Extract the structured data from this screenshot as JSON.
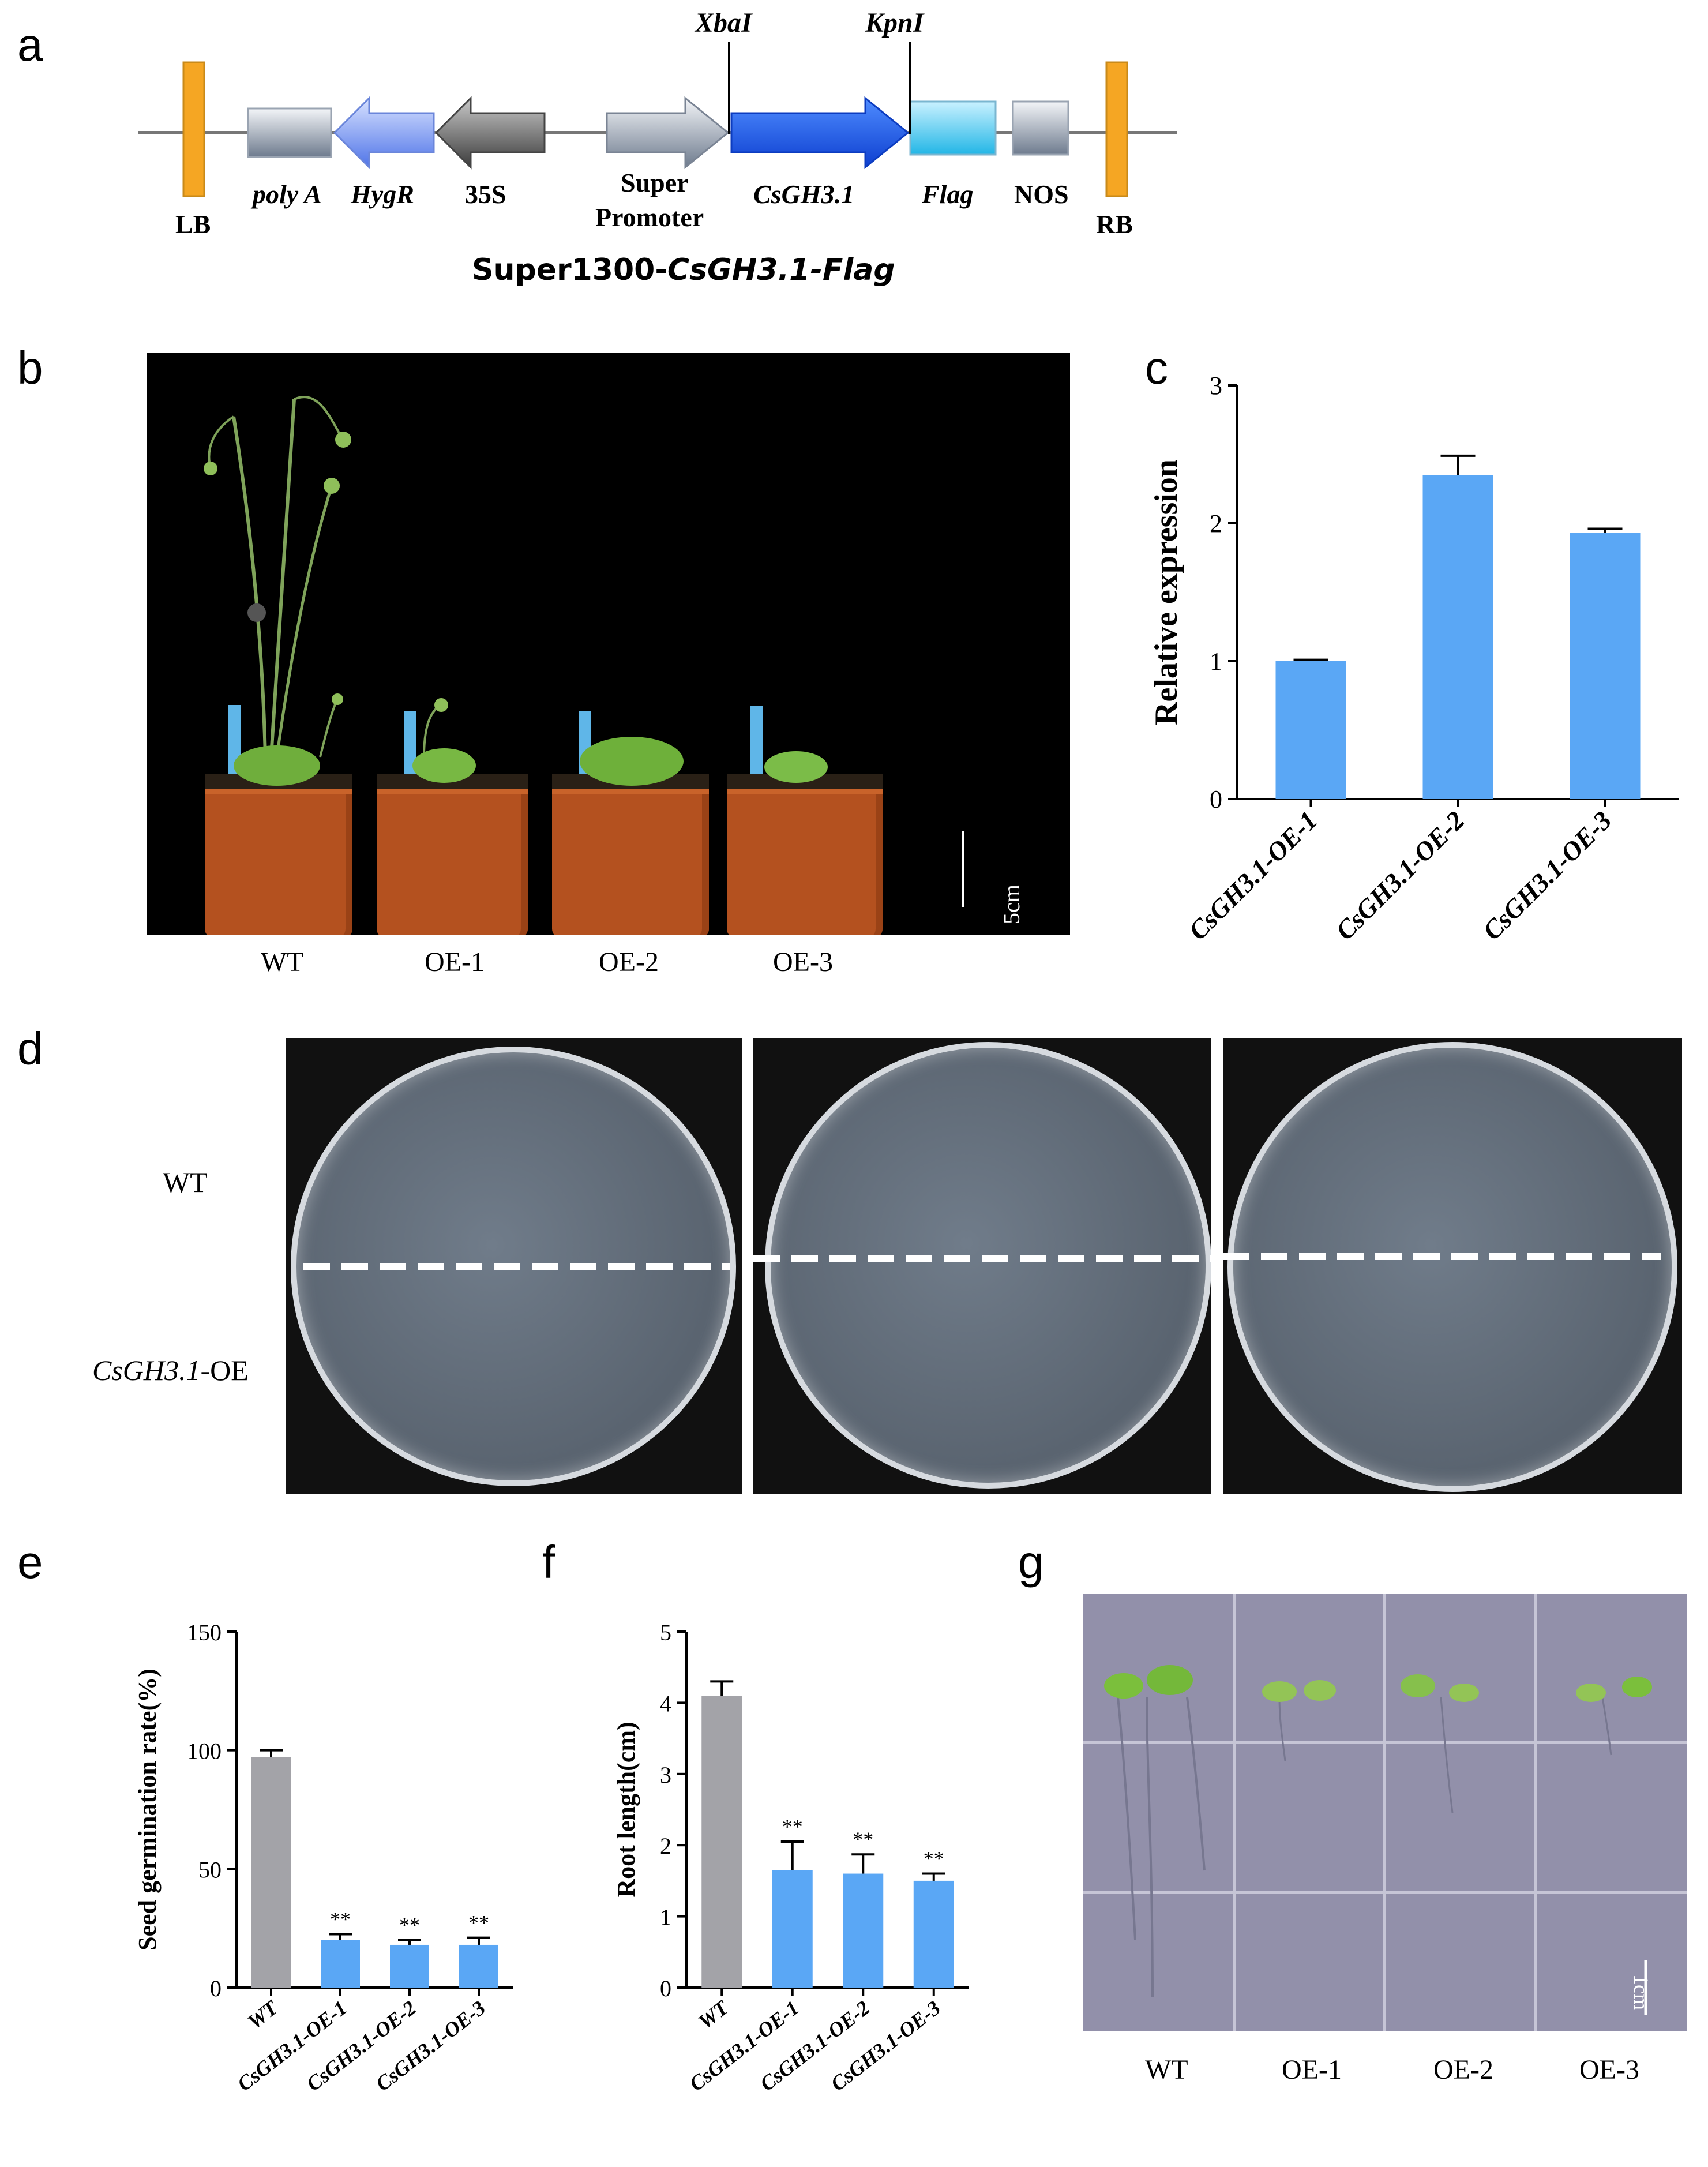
{
  "panels": {
    "a": "a",
    "b": "b",
    "c": "c",
    "d": "d",
    "e": "e",
    "f": "f",
    "g": "g"
  },
  "construct": {
    "title_prefix": "Super1300-",
    "title_gene": "CsGH3.1",
    "title_sep": "-",
    "title_tag": "Flag",
    "sites": {
      "xbai": "XbaI",
      "kpni": "KpnI"
    },
    "elements": {
      "lb": "LB",
      "polya": "poly A",
      "hygr": "HygR",
      "p35s": "35S",
      "super1": "Super",
      "super2": "Promoter",
      "gene": "CsGH3.1",
      "flag": "Flag",
      "nos": "NOS",
      "rb": "RB"
    },
    "colors": {
      "lb_rb": "#f5a623",
      "hygr": "#6f8ff0",
      "p35s": "#555555",
      "gene": "#1a5cf0",
      "flag": "#35c1e8",
      "grey_box": "#9ea7b4"
    }
  },
  "photo_b": {
    "labels": [
      "WT",
      "OE-1",
      "OE-2",
      "OE-3"
    ],
    "scale": "5cm"
  },
  "photo_d": {
    "row_top": "WT",
    "row_bottom_gene": "CsGH3.1",
    "row_bottom_suffix": "-OE"
  },
  "photo_g": {
    "labels": [
      "WT",
      "OE-1",
      "OE-2",
      "OE-3"
    ],
    "scale": "1cm"
  },
  "charts": {
    "c": {
      "chart_data": {
        "type": "bar",
        "categories": [
          "CsGH3.1-OE-1",
          "CsGH3.1-OE-2",
          "CsGH3.1-OE-3"
        ],
        "values": [
          1.0,
          2.35,
          1.93
        ],
        "errors": [
          0.01,
          0.14,
          0.03
        ],
        "ylabel": "Relative expression",
        "ylim": [
          0,
          3
        ],
        "yticks": [
          "0",
          "1",
          "2",
          "3"
        ],
        "colors": [
          "#5aa7f5",
          "#5aa7f5",
          "#5aa7f5"
        ],
        "significance": [
          "",
          "",
          ""
        ]
      }
    },
    "e": {
      "chart_data": {
        "type": "bar",
        "categories": [
          "WT",
          "CsGH3.1-OE-1",
          "CsGH3.1-OE-2",
          "CsGH3.1-OE-3"
        ],
        "values": [
          97,
          20,
          18,
          18
        ],
        "errors": [
          3,
          2.5,
          2,
          3
        ],
        "ylabel": "Seed germination rate(%)",
        "ylim": [
          0,
          150
        ],
        "yticks": [
          "0",
          "50",
          "100",
          "150"
        ],
        "colors": [
          "#a3a3a8",
          "#5aa7f5",
          "#5aa7f5",
          "#5aa7f5"
        ],
        "significance": [
          "",
          "**",
          "**",
          "**"
        ]
      }
    },
    "f": {
      "chart_data": {
        "type": "bar",
        "categories": [
          "WT",
          "CsGH3.1-OE-1",
          "CsGH3.1-OE-2",
          "CsGH3.1-OE-3"
        ],
        "values": [
          4.1,
          1.65,
          1.6,
          1.5
        ],
        "errors": [
          0.2,
          0.4,
          0.27,
          0.1
        ],
        "ylabel": "Root length(cm)",
        "ylim": [
          0,
          5
        ],
        "yticks": [
          "0",
          "1",
          "2",
          "3",
          "4",
          "5"
        ],
        "colors": [
          "#a3a3a8",
          "#5aa7f5",
          "#5aa7f5",
          "#5aa7f5"
        ],
        "significance": [
          "",
          "**",
          "**",
          "**"
        ]
      }
    }
  }
}
